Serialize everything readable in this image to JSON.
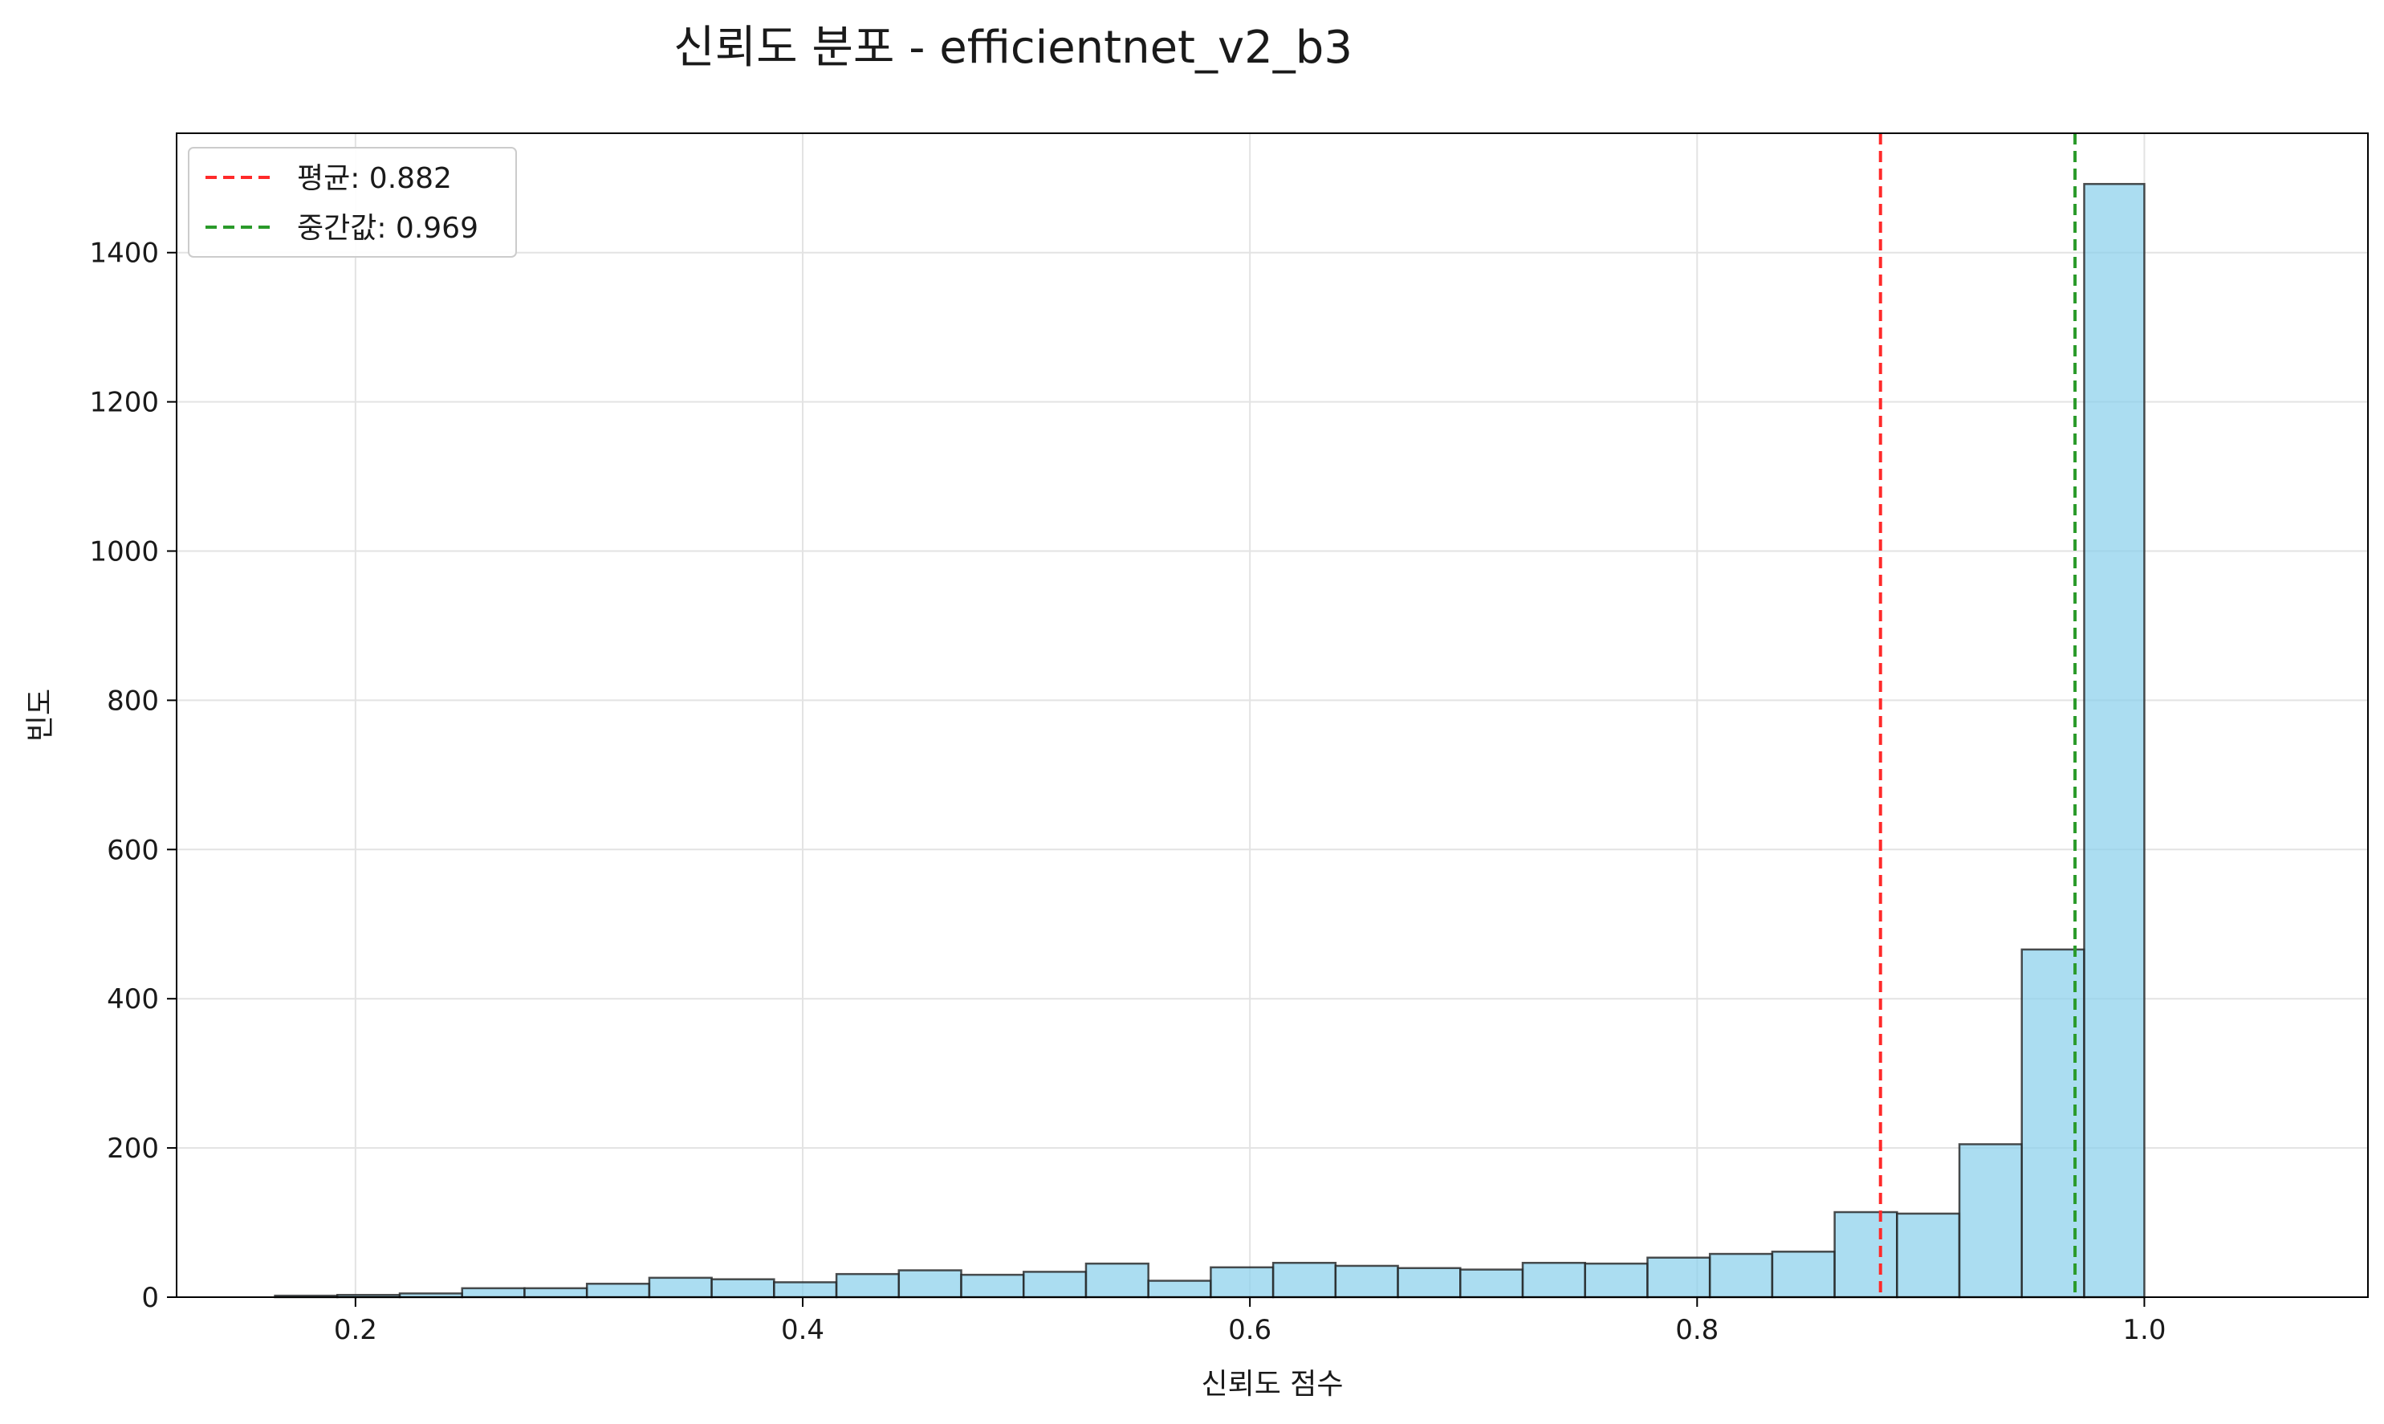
{
  "chart_data": {
    "type": "bar",
    "title": "신뢰도 분포 - efficientnet_v2_b3",
    "xlabel": "신뢰도 점수",
    "ylabel": "빈도",
    "xlim": [
      0.12,
      1.1
    ],
    "ylim": [
      0,
      1560
    ],
    "grid": true,
    "legend_placement": "top-left",
    "x_ticks": [
      0.2,
      0.4,
      0.6,
      0.8,
      1.0
    ],
    "x_tick_labels": [
      "0.2",
      "0.4",
      "0.6",
      "0.8",
      "1.0"
    ],
    "y_ticks": [
      0,
      200,
      400,
      600,
      800,
      1000,
      1200,
      1400
    ],
    "y_tick_labels": [
      "0",
      "200",
      "400",
      "600",
      "800",
      "1000",
      "1200",
      "1400"
    ],
    "bin_edges": [
      0.164,
      0.1919,
      0.2198,
      0.2477,
      0.2756,
      0.3035,
      0.3314,
      0.3593,
      0.3872,
      0.4151,
      0.443,
      0.4709,
      0.4988,
      0.5267,
      0.5546,
      0.5825,
      0.6104,
      0.6383,
      0.6662,
      0.6941,
      0.722,
      0.7499,
      0.7778,
      0.8057,
      0.8336,
      0.8615,
      0.8894,
      0.9173,
      0.9452,
      0.9731,
      1.0
    ],
    "counts": [
      2,
      3,
      5,
      12,
      12,
      18,
      26,
      24,
      20,
      31,
      36,
      30,
      34,
      45,
      22,
      40,
      46,
      42,
      39,
      37,
      46,
      45,
      53,
      58,
      61,
      114,
      112,
      205,
      466,
      1492
    ],
    "bar_color": "#87ceeb",
    "bar_edge_color": "#222222",
    "reference_lines": [
      {
        "label": "평균: 0.882",
        "value": 0.882,
        "color": "#ff2a2a"
      },
      {
        "label": "중간값: 0.969",
        "value": 0.969,
        "color": "#2a9a2a"
      }
    ]
  }
}
